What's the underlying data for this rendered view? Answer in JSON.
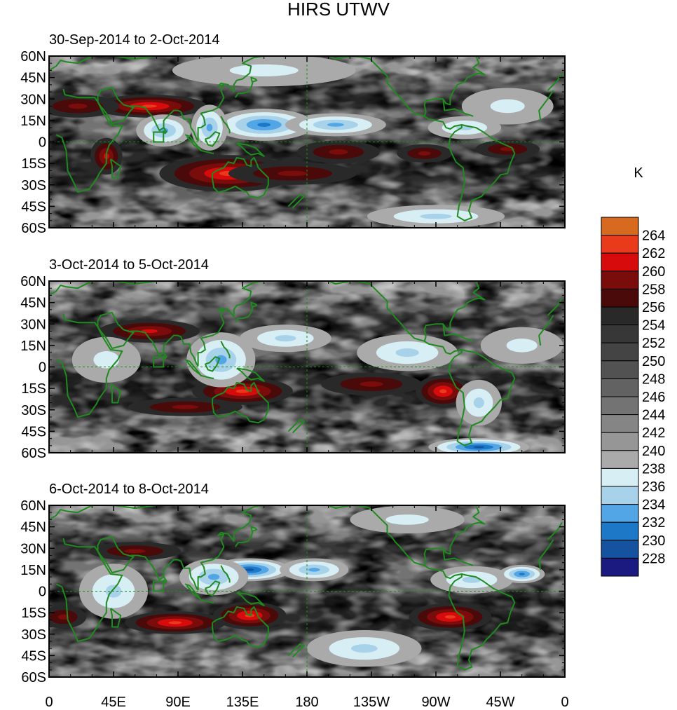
{
  "chart_data": {
    "type": "heatmap",
    "title": "HIRS UTWV",
    "units": "K",
    "colorbar": {
      "levels": [
        228,
        230,
        232,
        234,
        236,
        238,
        240,
        242,
        244,
        246,
        248,
        250,
        252,
        254,
        256,
        258,
        260,
        262,
        264
      ],
      "colors": [
        "#1a1a80",
        "#1553a0",
        "#1e78c8",
        "#52a6e6",
        "#a8d2ea",
        "#d6eef4",
        "#aaaaaa",
        "#969696",
        "#858585",
        "#737373",
        "#626262",
        "#525252",
        "#444444",
        "#373737",
        "#292929",
        "#4a0a0a",
        "#7a0c0c",
        "#d70b0b",
        "#ea3a1c",
        "#d86a20"
      ]
    },
    "x_ticks": [
      "0",
      "45E",
      "90E",
      "135E",
      "180",
      "135W",
      "90W",
      "45W",
      "0"
    ],
    "y_ticks": [
      "60N",
      "45N",
      "30N",
      "15N",
      "0",
      "15S",
      "30S",
      "45S",
      "60S"
    ],
    "panels": [
      {
        "label": "30-Sep-2014 to 2-Oct-2014",
        "features": [
          {
            "lon": 70,
            "lat": 25,
            "val": 261,
            "sx": 25,
            "sy": 5
          },
          {
            "lon": 20,
            "lat": 25,
            "val": 258,
            "sx": 18,
            "sy": 5
          },
          {
            "lon": 40,
            "lat": -10,
            "val": 259,
            "sx": 7,
            "sy": 8
          },
          {
            "lon": 125,
            "lat": -22,
            "val": 261,
            "sx": 30,
            "sy": 8
          },
          {
            "lon": 170,
            "lat": -22,
            "val": 258,
            "sx": 28,
            "sy": 5
          },
          {
            "lon": 202,
            "lat": -7,
            "val": 258,
            "sx": 18,
            "sy": 5
          },
          {
            "lon": 262,
            "lat": -8,
            "val": 258,
            "sx": 12,
            "sy": 4
          },
          {
            "lon": 320,
            "lat": -5,
            "val": 257,
            "sx": 14,
            "sy": 4
          },
          {
            "lon": 150,
            "lat": 12,
            "val": 233,
            "sx": 22,
            "sy": 7
          },
          {
            "lon": 200,
            "lat": 12,
            "val": 235,
            "sx": 22,
            "sy": 5
          },
          {
            "lon": 80,
            "lat": 8,
            "val": 235,
            "sx": 12,
            "sy": 7
          },
          {
            "lon": 112,
            "lat": 10,
            "val": 235,
            "sx": 8,
            "sy": 10
          },
          {
            "lon": 290,
            "lat": 10,
            "val": 236,
            "sx": 16,
            "sy": 5
          },
          {
            "lon": 270,
            "lat": -52,
            "val": 236,
            "sx": 30,
            "sy": 5
          },
          {
            "lon": 150,
            "lat": 50,
            "val": 238,
            "sx": 40,
            "sy": 7
          },
          {
            "lon": 320,
            "lat": 25,
            "val": 238,
            "sx": 20,
            "sy": 8
          }
        ]
      },
      {
        "label": "3-Oct-2014 to 5-Oct-2014",
        "features": [
          {
            "lon": 70,
            "lat": 25,
            "val": 259,
            "sx": 22,
            "sy": 5
          },
          {
            "lon": 135,
            "lat": -17,
            "val": 262,
            "sx": 22,
            "sy": 6
          },
          {
            "lon": 95,
            "lat": -28,
            "val": 258,
            "sx": 25,
            "sy": 4
          },
          {
            "lon": 225,
            "lat": -12,
            "val": 257,
            "sx": 22,
            "sy": 5
          },
          {
            "lon": 275,
            "lat": -17,
            "val": 261,
            "sx": 12,
            "sy": 7
          },
          {
            "lon": 300,
            "lat": -56,
            "val": 231,
            "sx": 22,
            "sy": 4
          },
          {
            "lon": 120,
            "lat": 5,
            "val": 234,
            "sx": 15,
            "sy": 12
          },
          {
            "lon": 165,
            "lat": 20,
            "val": 236,
            "sx": 20,
            "sy": 6
          },
          {
            "lon": 300,
            "lat": -25,
            "val": 236,
            "sx": 10,
            "sy": 10
          },
          {
            "lon": 40,
            "lat": 5,
            "val": 238,
            "sx": 15,
            "sy": 10
          },
          {
            "lon": 250,
            "lat": 10,
            "val": 237,
            "sx": 22,
            "sy": 8
          },
          {
            "lon": 330,
            "lat": 15,
            "val": 238,
            "sx": 18,
            "sy": 8
          }
        ]
      },
      {
        "label": "6-Oct-2014 to 8-Oct-2014",
        "features": [
          {
            "lon": 88,
            "lat": -22,
            "val": 261,
            "sx": 22,
            "sy": 5
          },
          {
            "lon": 140,
            "lat": -17,
            "val": 262,
            "sx": 16,
            "sy": 6
          },
          {
            "lon": 280,
            "lat": -18,
            "val": 261,
            "sx": 18,
            "sy": 6
          },
          {
            "lon": 60,
            "lat": 28,
            "val": 258,
            "sx": 20,
            "sy": 4
          },
          {
            "lon": 10,
            "lat": -18,
            "val": 257,
            "sx": 10,
            "sy": 5
          },
          {
            "lon": 140,
            "lat": 15,
            "val": 231,
            "sx": 18,
            "sy": 5
          },
          {
            "lon": 115,
            "lat": 10,
            "val": 234,
            "sx": 15,
            "sy": 8
          },
          {
            "lon": 185,
            "lat": 15,
            "val": 235,
            "sx": 15,
            "sy": 5
          },
          {
            "lon": 295,
            "lat": 8,
            "val": 236,
            "sx": 18,
            "sy": 6
          },
          {
            "lon": 330,
            "lat": 12,
            "val": 233,
            "sx": 10,
            "sy": 4
          },
          {
            "lon": 45,
            "lat": 0,
            "val": 237,
            "sx": 15,
            "sy": 12
          },
          {
            "lon": 220,
            "lat": -40,
            "val": 237,
            "sx": 25,
            "sy": 8
          },
          {
            "lon": 250,
            "lat": 50,
            "val": 238,
            "sx": 25,
            "sy": 6
          }
        ]
      }
    ]
  }
}
